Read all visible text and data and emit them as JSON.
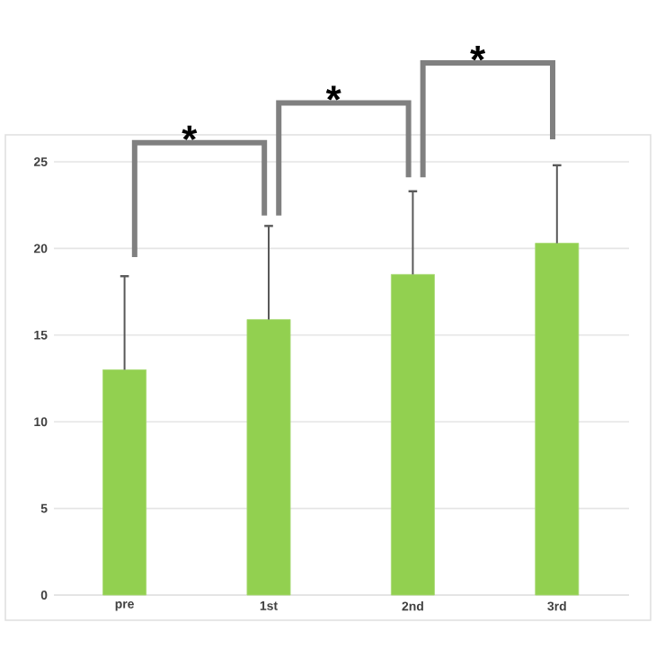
{
  "chart_data": {
    "type": "bar",
    "categories": [
      "pre",
      "1st",
      "2nd",
      "3rd"
    ],
    "values": [
      13.0,
      15.9,
      18.5,
      20.3
    ],
    "errors": [
      [
        13.0,
        18.4
      ],
      [
        15.9,
        21.3
      ],
      [
        18.5,
        23.3
      ],
      [
        20.3,
        24.8
      ]
    ],
    "color": "#92d050",
    "ylim": [
      0,
      25
    ],
    "yticks": [
      0,
      5,
      10,
      15,
      20,
      25
    ],
    "grid": "y",
    "annotations": [
      "*",
      "*",
      "*"
    ]
  }
}
